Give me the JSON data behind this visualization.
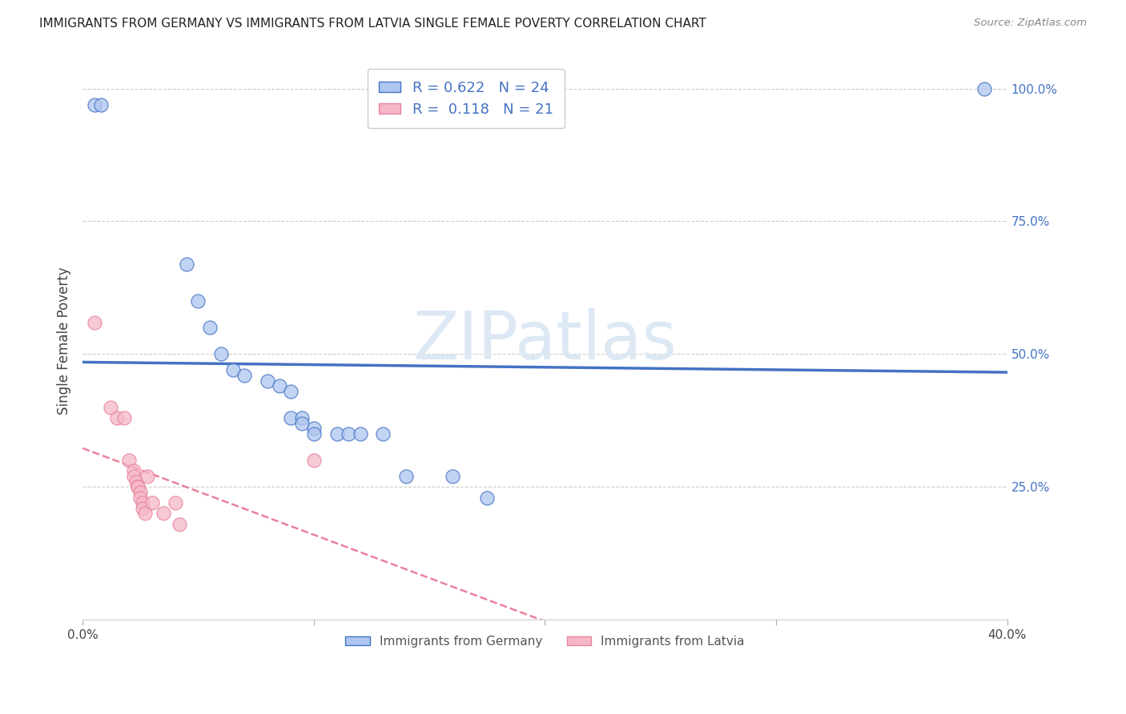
{
  "title": "IMMIGRANTS FROM GERMANY VS IMMIGRANTS FROM LATVIA SINGLE FEMALE POVERTY CORRELATION CHART",
  "source": "Source: ZipAtlas.com",
  "ylabel": "Single Female Poverty",
  "ylabel_right_labels": [
    "100.0%",
    "75.0%",
    "50.0%",
    "25.0%"
  ],
  "ylabel_right_positions": [
    1.0,
    0.75,
    0.5,
    0.25
  ],
  "bottom_legend": [
    {
      "label": "Immigrants from Germany",
      "color_face": "#aec6f0",
      "color_edge": "#4472c4"
    },
    {
      "label": "Immigrants from Latvia",
      "color_face": "#f5b8c8",
      "color_edge": "#e8829a"
    }
  ],
  "germany_R": 0.622,
  "germany_N": 24,
  "latvia_R": 0.118,
  "latvia_N": 21,
  "germany_points": [
    [
      0.005,
      0.97
    ],
    [
      0.008,
      0.97
    ],
    [
      0.045,
      0.67
    ],
    [
      0.05,
      0.6
    ],
    [
      0.055,
      0.55
    ],
    [
      0.06,
      0.5
    ],
    [
      0.065,
      0.47
    ],
    [
      0.07,
      0.46
    ],
    [
      0.08,
      0.45
    ],
    [
      0.085,
      0.44
    ],
    [
      0.09,
      0.43
    ],
    [
      0.09,
      0.38
    ],
    [
      0.095,
      0.38
    ],
    [
      0.095,
      0.37
    ],
    [
      0.1,
      0.36
    ],
    [
      0.1,
      0.35
    ],
    [
      0.11,
      0.35
    ],
    [
      0.115,
      0.35
    ],
    [
      0.12,
      0.35
    ],
    [
      0.13,
      0.35
    ],
    [
      0.14,
      0.27
    ],
    [
      0.16,
      0.27
    ],
    [
      0.175,
      0.23
    ],
    [
      0.39,
      1.0
    ]
  ],
  "latvia_points": [
    [
      0.005,
      0.56
    ],
    [
      0.012,
      0.4
    ],
    [
      0.015,
      0.38
    ],
    [
      0.018,
      0.38
    ],
    [
      0.02,
      0.3
    ],
    [
      0.022,
      0.28
    ],
    [
      0.022,
      0.27
    ],
    [
      0.023,
      0.26
    ],
    [
      0.024,
      0.25
    ],
    [
      0.024,
      0.25
    ],
    [
      0.025,
      0.24
    ],
    [
      0.025,
      0.23
    ],
    [
      0.026,
      0.22
    ],
    [
      0.026,
      0.21
    ],
    [
      0.027,
      0.2
    ],
    [
      0.028,
      0.27
    ],
    [
      0.03,
      0.22
    ],
    [
      0.035,
      0.2
    ],
    [
      0.04,
      0.22
    ],
    [
      0.042,
      0.18
    ],
    [
      0.1,
      0.3
    ]
  ],
  "germany_line_color": "#4472c4",
  "latvia_line_color": "#e8829a",
  "germany_marker_color": "#aec6f0",
  "latvia_marker_color": "#f5b8c8",
  "background_color": "#ffffff",
  "grid_color": "#cccccc",
  "xlim": [
    0.0,
    0.4
  ],
  "ylim": [
    0.0,
    1.05
  ],
  "watermark": "ZIPatlas",
  "watermark_color": "#dde8f5"
}
